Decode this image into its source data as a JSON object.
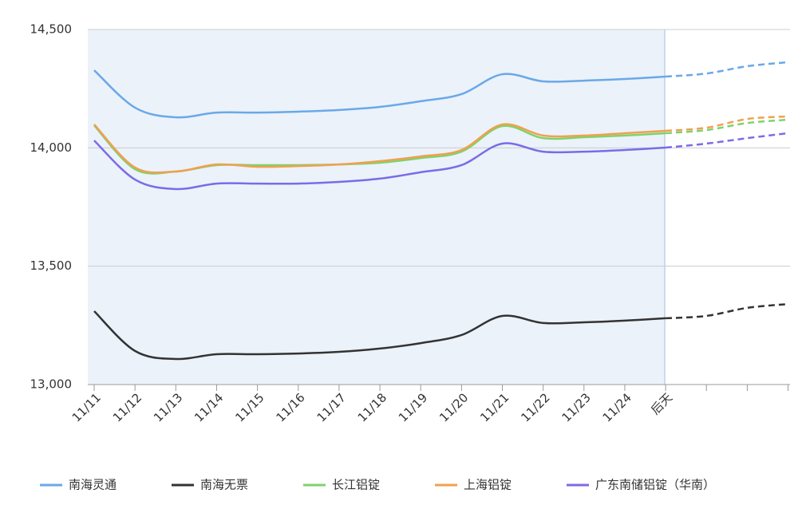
{
  "chart_data": {
    "type": "line",
    "categories": [
      "11/11",
      "11/12",
      "11/13",
      "11/14",
      "11/15",
      "11/16",
      "11/17",
      "11/18",
      "11/19",
      "11/20",
      "11/21",
      "11/22",
      "11/23",
      "11/24",
      "后天",
      null,
      null,
      null
    ],
    "ylim": [
      13000,
      14500
    ],
    "yticks": [
      {
        "value": 13000,
        "label": "13,000"
      },
      {
        "value": 13500,
        "label": "13,500"
      },
      {
        "value": 14000,
        "label": "14,000"
      },
      {
        "value": 14500,
        "label": "14,500"
      }
    ],
    "grid": true,
    "legend": "bottom",
    "series": [
      {
        "name": "南海灵通",
        "color": "#6aa8e8",
        "values": [
          14328,
          14170,
          14129,
          14149,
          14149,
          14153,
          14160,
          14173,
          14197,
          14227,
          14311,
          14281,
          14284,
          14291,
          14301,
          14314,
          14345,
          14362
        ]
      },
      {
        "name": "南海无票",
        "color": "#333333",
        "values": [
          13310,
          13142,
          13108,
          13128,
          13128,
          13131,
          13138,
          13152,
          13175,
          13209,
          13290,
          13260,
          13263,
          13270,
          13280,
          13290,
          13324,
          13340
        ]
      },
      {
        "name": "长江铝锭",
        "color": "#7ed36b",
        "values": [
          14095,
          13910,
          13900,
          13927,
          13927,
          13927,
          13930,
          13937,
          13957,
          13984,
          14092,
          14041,
          14045,
          14052,
          14062,
          14075,
          14105,
          14119
        ]
      },
      {
        "name": "上海铝锭",
        "color": "#f0a050",
        "values": [
          14099,
          13917,
          13900,
          13930,
          13920,
          13923,
          13930,
          13944,
          13964,
          13991,
          14099,
          14052,
          14052,
          14062,
          14072,
          14085,
          14122,
          14133
        ]
      },
      {
        "name": "广东南储铝锭（华南）",
        "color": "#7b6be8",
        "values": [
          14031,
          13866,
          13826,
          13849,
          13849,
          13849,
          13856,
          13870,
          13897,
          13927,
          14018,
          13984,
          13984,
          13991,
          14001,
          14018,
          14041,
          14062
        ]
      }
    ]
  }
}
